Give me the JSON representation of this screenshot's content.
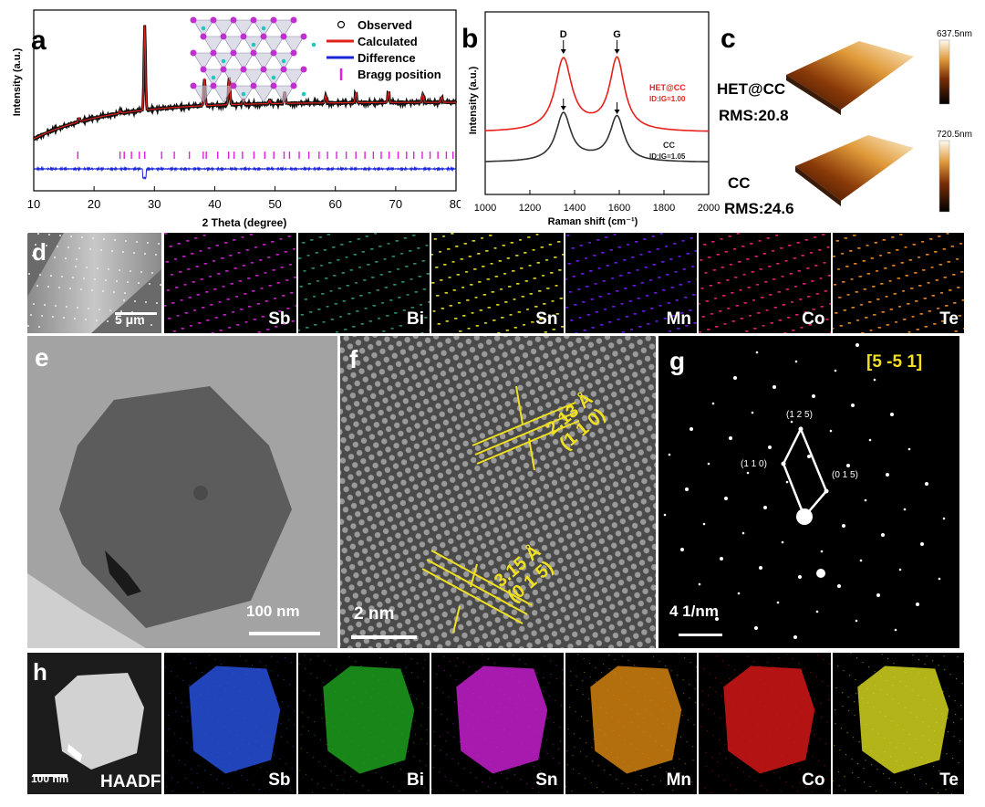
{
  "panel_labels": [
    "a",
    "b",
    "c",
    "d",
    "e",
    "f",
    "g",
    "h"
  ],
  "chart_data": [
    {
      "type": "line",
      "panel": "a",
      "title": "",
      "xlabel": "2 Theta (degree)",
      "ylabel": "Intensity (a.u.)",
      "xlim": [
        10,
        80
      ],
      "xticks": [
        10,
        20,
        30,
        40,
        50,
        60,
        70,
        80
      ],
      "legend": [
        "Observed",
        "Calculated",
        "Difference",
        "Bragg position"
      ],
      "legend_position": "top-right",
      "peaks_2theta": [
        17.5,
        24.3,
        28.4,
        38.3,
        42.4,
        44.7,
        49.1,
        51.6,
        58.4,
        63.4,
        68.8,
        74.5,
        77.6
      ],
      "series": [
        {
          "name": "Observed",
          "marker": "open-circle"
        },
        {
          "name": "Calculated",
          "color": "#e0201b"
        },
        {
          "name": "Difference",
          "color": "#1a25d8"
        },
        {
          "name": "Bragg position",
          "color": "#e020e0",
          "marker": "tick"
        }
      ]
    },
    {
      "type": "line",
      "panel": "b",
      "xlabel": "Raman shift (cm⁻¹)",
      "ylabel": "Intensity (a.u.)",
      "xlim": [
        1000,
        2000
      ],
      "xticks": [
        1000,
        1200,
        1400,
        1600,
        1800,
        2000
      ],
      "band_labels": [
        {
          "name": "D",
          "x": 1350
        },
        {
          "name": "G",
          "x": 1590
        }
      ],
      "series": [
        {
          "name": "HET@CC",
          "ratio_label": "ID:IG=1.00",
          "color": "#e8201b"
        },
        {
          "name": "CC",
          "ratio_label": "ID:IG=1.05",
          "color": "#333333"
        }
      ]
    }
  ],
  "afm": {
    "het": {
      "sample": "HET@CC",
      "rms": "RMS:20.8",
      "scale_max": "637.5nm"
    },
    "cc": {
      "sample": "CC",
      "rms": "RMS:24.6",
      "scale_max": "720.5nm"
    }
  },
  "panel_d": {
    "scale_bar": "5 μm",
    "maps": [
      {
        "element": "Sb",
        "color": "#c020c8"
      },
      {
        "element": "Bi",
        "color": "#2a8a6a"
      },
      {
        "element": "Sn",
        "color": "#d8d020"
      },
      {
        "element": "Mn",
        "color": "#6a1ae0"
      },
      {
        "element": "Co",
        "color": "#d82070"
      },
      {
        "element": "Te",
        "color": "#e08020"
      }
    ]
  },
  "panel_e": {
    "scale_bar": "100 nm"
  },
  "panel_f": {
    "scale_bar": "2 nm",
    "fringe1": {
      "spacing": "2.13 Å",
      "plane": "(1 1 0)"
    },
    "fringe2": {
      "spacing": "3.15 Å",
      "plane": "(0 1 5)"
    }
  },
  "panel_g": {
    "zone_axis": "[5 -5 1]",
    "scale_bar": "4 1/nm",
    "spots": [
      "(1 2 5)",
      "(1 1 0)",
      "(0 1 5)"
    ]
  },
  "panel_h": {
    "scale_bar": "100 nm",
    "haadf_label": "HAADF",
    "maps": [
      {
        "element": "Sb",
        "color": "#2a55e8"
      },
      {
        "element": "Bi",
        "color": "#1ea81e"
      },
      {
        "element": "Sn",
        "color": "#d020d8"
      },
      {
        "element": "Mn",
        "color": "#e08a10"
      },
      {
        "element": "Co",
        "color": "#e01818"
      },
      {
        "element": "Te",
        "color": "#e0e020"
      }
    ]
  }
}
